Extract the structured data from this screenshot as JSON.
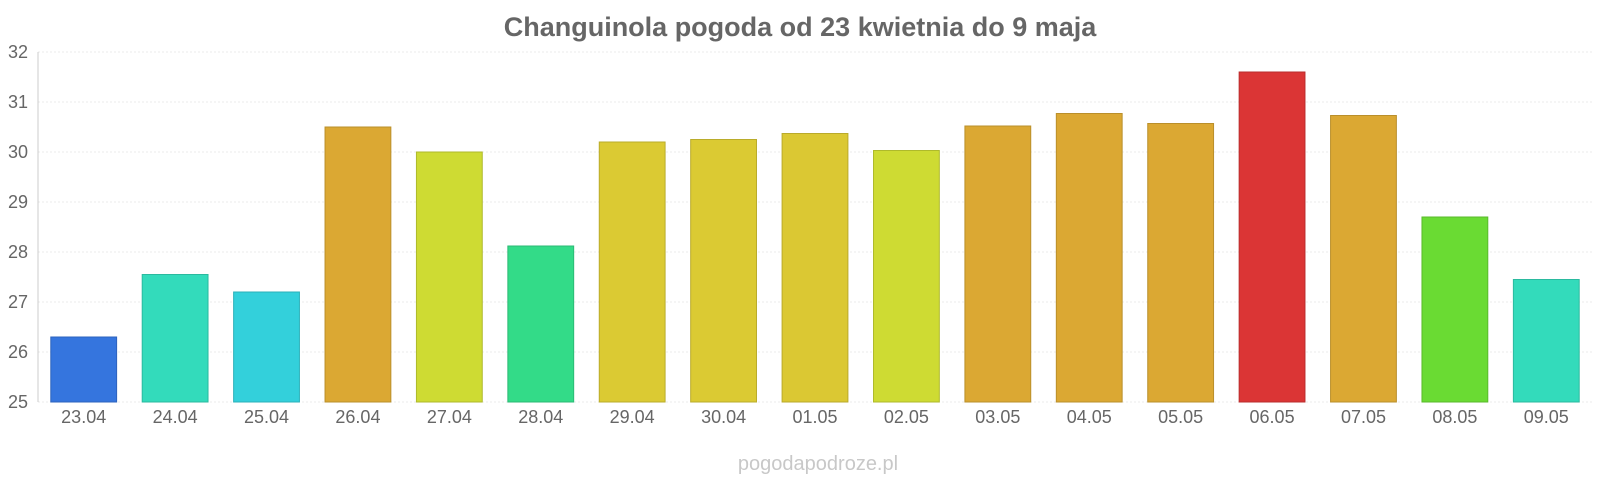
{
  "chart_data": {
    "type": "bar",
    "title": "Changuinola pogoda od 23 kwietnia do 9 maja",
    "xlabel": "",
    "ylabel": "",
    "ylim": [
      25,
      32
    ],
    "yticks": [
      25,
      26,
      27,
      28,
      29,
      30,
      31,
      32
    ],
    "grid": true,
    "categories": [
      "23.04",
      "24.04",
      "25.04",
      "26.04",
      "27.04",
      "28.04",
      "29.04",
      "30.04",
      "01.05",
      "02.05",
      "03.05",
      "04.05",
      "05.05",
      "06.05",
      "07.05",
      "08.05",
      "09.05"
    ],
    "values": [
      26.3,
      27.55,
      27.2,
      30.5,
      30.0,
      28.12,
      30.2,
      30.25,
      30.37,
      30.03,
      30.52,
      30.77,
      30.57,
      31.6,
      30.73,
      28.7,
      27.45
    ],
    "colors": [
      "#3575de",
      "#33dbbb",
      "#33d0db",
      "#dba833",
      "#cedb33",
      "#33db88",
      "#dbca33",
      "#dbca33",
      "#dbc833",
      "#cedb33",
      "#dba833",
      "#dba833",
      "#dba833",
      "#db3535",
      "#dba833",
      "#6adb33",
      "#33dbbb"
    ]
  },
  "watermark": "pogodapodroze.pl"
}
